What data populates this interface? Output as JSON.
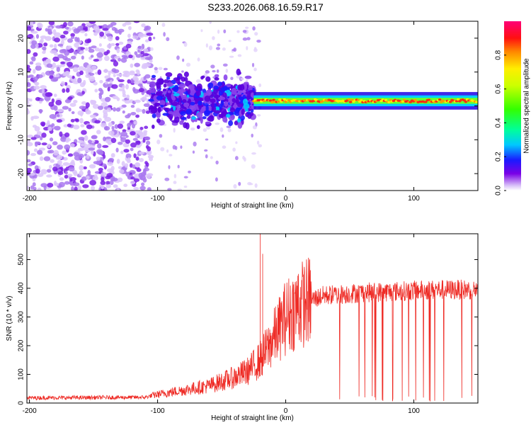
{
  "title": "S233.2026.068.16.59.R17",
  "colors": {
    "snr_line": "#ee2a24",
    "frame": "#000000",
    "low_amp": "#b388f5",
    "mid_amp": "#6a00e0"
  },
  "chart_data": [
    {
      "type": "heatmap",
      "title": "S233.2026.068.16.59.R17",
      "xlabel": "Height of straight line (km)",
      "ylabel": "Frequency (Hz)",
      "xlim": [
        -202,
        150
      ],
      "ylim": [
        -25,
        25
      ],
      "xticks": [
        -200,
        -100,
        0,
        100
      ],
      "yticks": [
        -20,
        -10,
        0,
        10,
        20
      ],
      "colorbar": {
        "label": "Normalized spectral amplitude",
        "range": [
          0.0,
          1.0
        ],
        "ticks": [
          "0.0",
          "0.2",
          "0.4",
          "0.6",
          "0.8"
        ],
        "tick_values": [
          0.0,
          0.2,
          0.4,
          0.6,
          0.8
        ]
      },
      "regions": [
        {
          "x_range": [
            -202,
            -105
          ],
          "freq_range": [
            -25,
            25
          ],
          "amplitude": "low, scattered noise"
        },
        {
          "x_range": [
            -105,
            -25
          ],
          "freq_range": [
            -5,
            10
          ],
          "amplitude": "medium"
        },
        {
          "x_range": [
            -25,
            150
          ],
          "freq_center": 1.5,
          "freq_halfwidth": 1.2,
          "amplitude": "high, narrow band"
        }
      ]
    },
    {
      "type": "line",
      "xlabel": "Height of straight line (km)",
      "ylabel": "SNR (10 * v/v)",
      "xlim": [
        -202,
        150
      ],
      "ylim": [
        0,
        590
      ],
      "xticks": [
        -200,
        -100,
        0,
        100
      ],
      "yticks": [
        0,
        100,
        200,
        300,
        400,
        500
      ],
      "series": [
        {
          "name": "SNR",
          "envelope_x": [
            -202,
            -110,
            -100,
            -80,
            -60,
            -40,
            -30,
            -20,
            -15,
            -5,
            0,
            10,
            20,
            30,
            40,
            60,
            80,
            100,
            120,
            140,
            150
          ],
          "envelope_y": [
            18,
            20,
            30,
            45,
            60,
            90,
            110,
            150,
            185,
            260,
            300,
            340,
            360,
            375,
            378,
            385,
            388,
            392,
            395,
            395,
            395
          ],
          "spikes_x": [
            -20,
            -18,
            8,
            10
          ],
          "spikes_y": [
            590,
            520,
            360,
            450
          ]
        }
      ]
    }
  ]
}
